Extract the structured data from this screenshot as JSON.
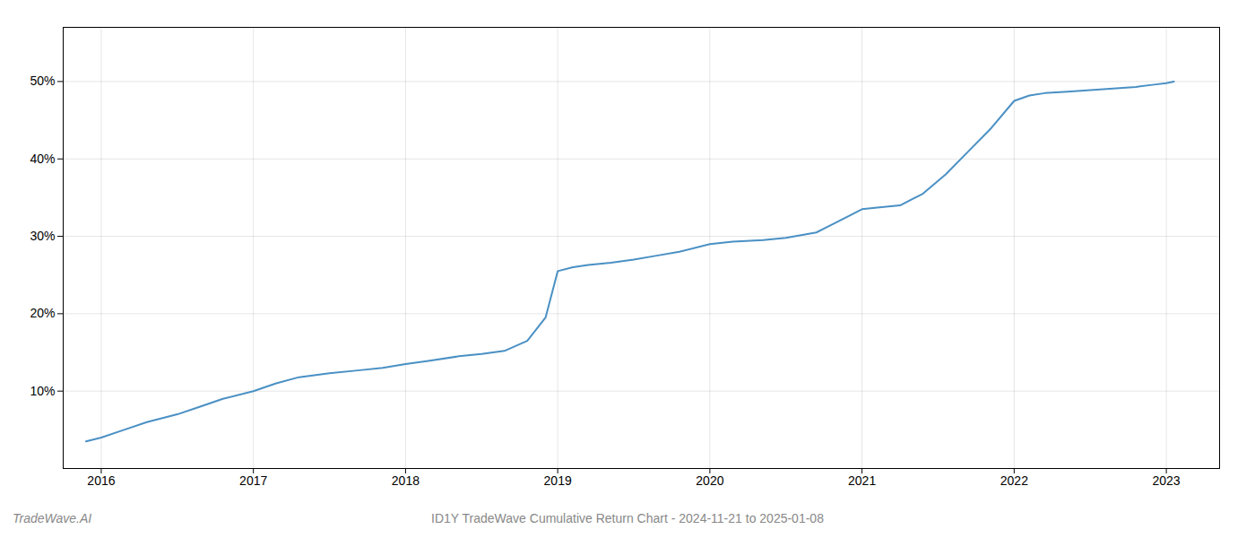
{
  "chart_data": {
    "type": "line",
    "title": "ID1Y TradeWave Cumulative Return Chart - 2024-11-21 to 2025-01-08",
    "annotations": [
      "TradeWave.AI"
    ],
    "color": "#4a90c4",
    "x": [
      2015.9,
      2016.0,
      2016.15,
      2016.3,
      2016.5,
      2016.65,
      2016.8,
      2017.0,
      2017.15,
      2017.3,
      2017.5,
      2017.7,
      2017.85,
      2018.0,
      2018.15,
      2018.35,
      2018.5,
      2018.65,
      2018.8,
      2018.92,
      2019.0,
      2019.1,
      2019.2,
      2019.35,
      2019.5,
      2019.65,
      2019.8,
      2020.0,
      2020.15,
      2020.35,
      2020.5,
      2020.7,
      2020.85,
      2021.0,
      2021.1,
      2021.25,
      2021.4,
      2021.55,
      2021.7,
      2021.85,
      2022.0,
      2022.1,
      2022.2,
      2022.35,
      2022.5,
      2022.65,
      2022.8,
      2022.92,
      2023.0,
      2023.05
    ],
    "values": [
      3.5,
      4.0,
      5.0,
      6.0,
      7.0,
      8.0,
      9.0,
      10.0,
      11.0,
      11.8,
      12.3,
      12.7,
      13.0,
      13.5,
      13.9,
      14.5,
      14.8,
      15.2,
      16.5,
      19.5,
      25.5,
      26.0,
      26.3,
      26.6,
      27.0,
      27.5,
      28.0,
      29.0,
      29.3,
      29.5,
      29.8,
      30.5,
      32.0,
      33.5,
      33.7,
      34.0,
      35.5,
      38.0,
      41.0,
      44.0,
      47.5,
      48.2,
      48.5,
      48.7,
      48.9,
      49.1,
      49.3,
      49.6,
      49.8,
      50.0
    ],
    "xlim": [
      2015.75,
      2023.35
    ],
    "ylim": [
      0,
      57
    ],
    "xticks": [
      2016,
      2017,
      2018,
      2019,
      2020,
      2021,
      2022,
      2023
    ],
    "yticks": [
      {
        "value": 10,
        "label": "10%"
      },
      {
        "value": 20,
        "label": "20%"
      },
      {
        "value": 30,
        "label": "30%"
      },
      {
        "value": 40,
        "label": "40%"
      },
      {
        "value": 50,
        "label": "50%"
      }
    ],
    "grid": true
  }
}
